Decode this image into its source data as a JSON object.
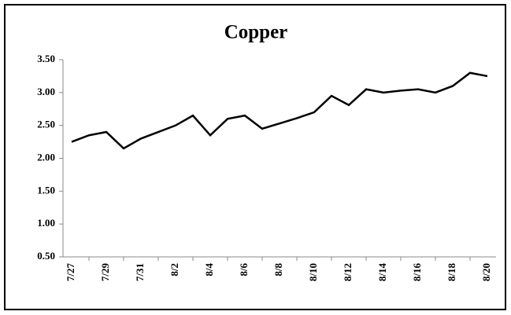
{
  "chart_data": {
    "type": "line",
    "title": "Copper",
    "categories": [
      "7/27",
      null,
      "7/29",
      null,
      "7/31",
      null,
      "8/2",
      null,
      "8/4",
      null,
      "8/6",
      null,
      "8/8",
      null,
      "8/10",
      null,
      "8/12",
      null,
      "8/14",
      null,
      "8/16",
      null,
      "8/18",
      null,
      "8/20"
    ],
    "values": [
      2.25,
      2.35,
      2.4,
      2.15,
      2.3,
      2.4,
      2.5,
      2.65,
      2.35,
      2.6,
      2.65,
      2.45,
      2.53,
      2.61,
      2.7,
      2.95,
      2.81,
      3.05,
      3.0,
      3.03,
      3.05,
      3.0,
      3.1,
      3.3,
      3.25
    ],
    "color": "#000000",
    "ylim": [
      0.5,
      3.5
    ],
    "yticks": [
      {
        "value": 0.5,
        "label": "0.50"
      },
      {
        "value": 1,
        "label": "1.00"
      },
      {
        "value": 1.5,
        "label": "1.50"
      },
      {
        "value": 2,
        "label": "2.00"
      },
      {
        "value": 2.5,
        "label": "2.50"
      },
      {
        "value": 3,
        "label": "3.00"
      },
      {
        "value": 3.5,
        "label": "3.50"
      }
    ],
    "grid": false
  }
}
